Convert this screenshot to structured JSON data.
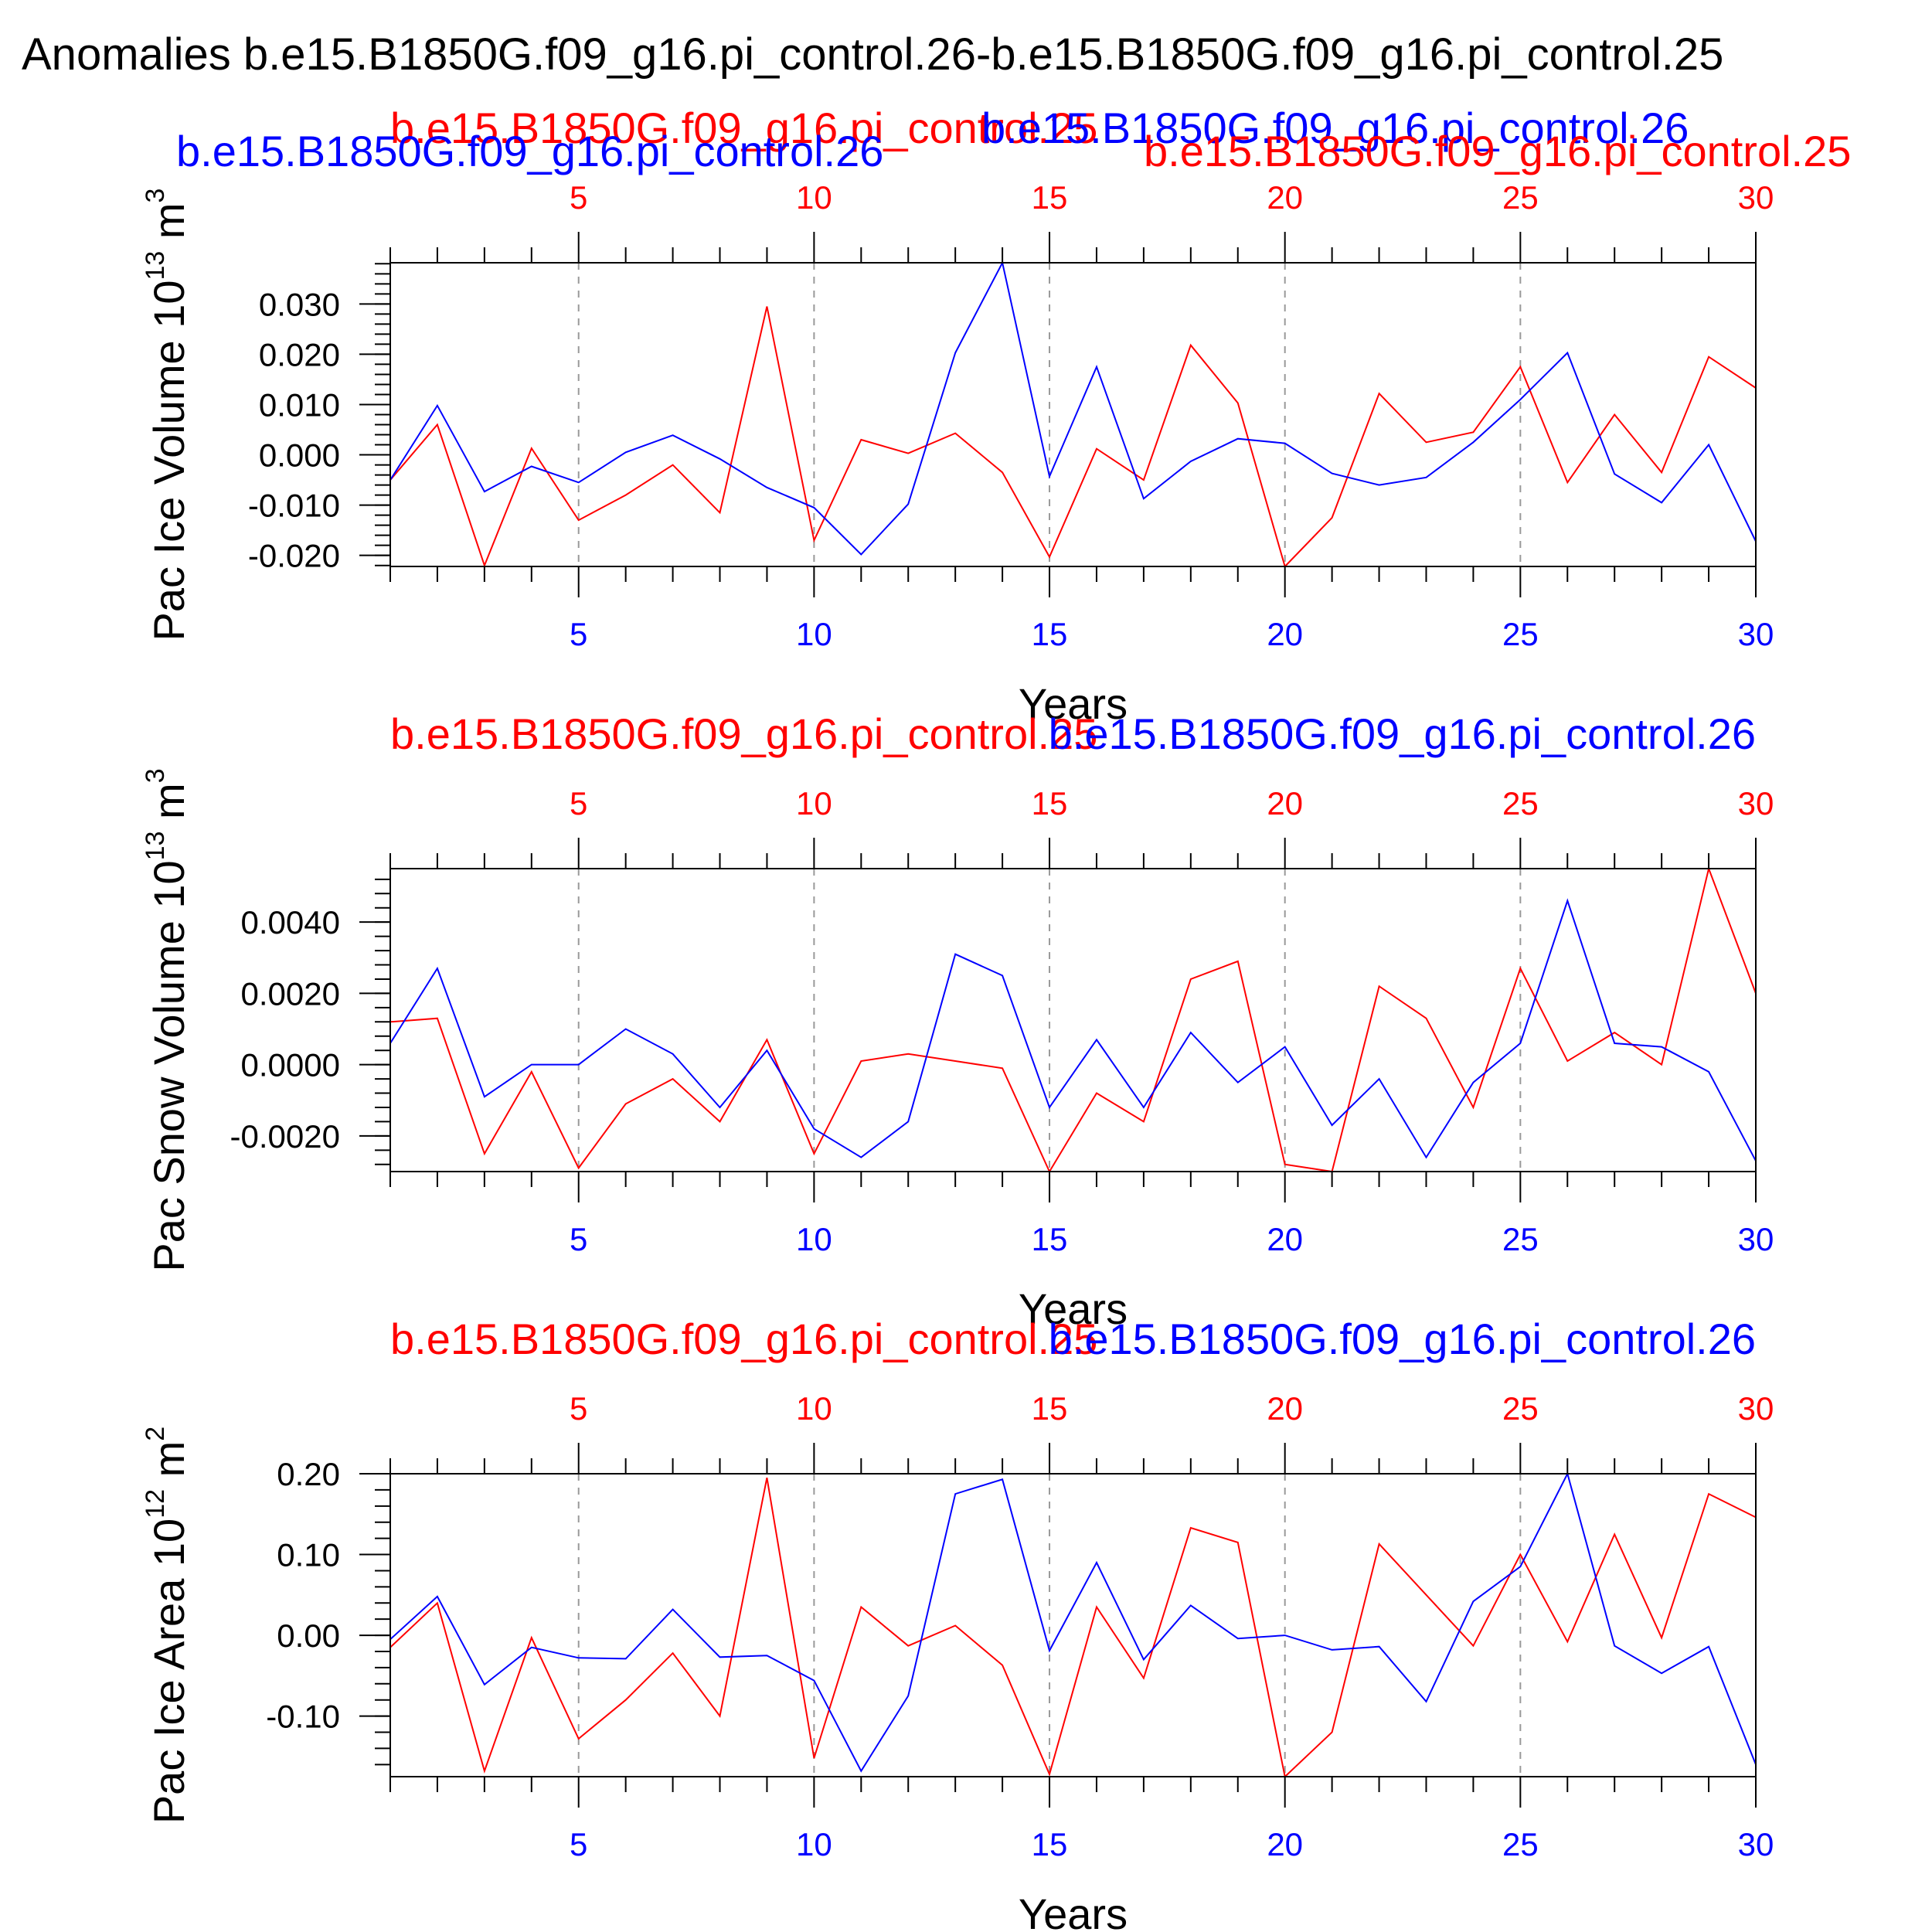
{
  "title": "Anomalies b.e15.B1850G.f09_g16.pi_control.26-b.e15.B1850G.f09_g16.pi_control.25",
  "colors": {
    "red": "#ff0000",
    "blue": "#0000ff",
    "axis": "#000000",
    "grid": "#999999"
  },
  "chart_data": [
    {
      "type": "line",
      "ylabel": "Pac Ice Volume 10",
      "ylabel_exp": "13",
      "ylabel_unit": " m",
      "ylabel_unit_exp": "3",
      "xlabel": "Years",
      "xlim": [
        1,
        30
      ],
      "ylim": [
        -0.0222,
        0.0382
      ],
      "yticks": [
        -0.02,
        -0.01,
        0.0,
        0.01,
        0.02,
        0.03
      ],
      "yticklabels": [
        "-0.020",
        "-0.010",
        "0.000",
        "0.010",
        "0.020",
        "0.030"
      ],
      "x": [
        1,
        2,
        3,
        4,
        5,
        6,
        7,
        8,
        9,
        10,
        11,
        12,
        13,
        14,
        15,
        16,
        17,
        18,
        19,
        20,
        21,
        22,
        23,
        24,
        25,
        26,
        27,
        28,
        29,
        30
      ],
      "series": [
        {
          "name": "b.e15.B1850G.f09_g16.pi_control.25",
          "color": "red",
          "axis": "top",
          "values": [
            -0.005,
            0.006,
            -0.022,
            0.0013,
            -0.013,
            -0.008,
            -0.002,
            -0.0115,
            0.0295,
            -0.017,
            0.003,
            0.0003,
            0.0043,
            -0.0035,
            -0.0203,
            0.0012,
            -0.005,
            0.0218,
            0.0103,
            -0.0222,
            -0.0125,
            0.0122,
            0.0025,
            0.0045,
            0.0175,
            -0.0055,
            0.008,
            -0.0035,
            0.0195,
            0.0133
          ]
        },
        {
          "name": "b.e15.B1850G.f09_g16.pi_control.26",
          "color": "blue",
          "axis": "bottom",
          "values": [
            -0.005,
            0.0098,
            -0.0073,
            -0.0023,
            -0.0055,
            0.0005,
            0.0039,
            -0.0008,
            -0.0065,
            -0.0105,
            -0.0198,
            -0.0098,
            0.0203,
            0.0382,
            -0.0043,
            0.0175,
            -0.0087,
            -0.0013,
            0.0032,
            0.0023,
            -0.0037,
            -0.006,
            -0.0045,
            0.0025,
            0.011,
            0.0203,
            -0.0038,
            -0.0095,
            0.002,
            -0.0172
          ]
        }
      ]
    },
    {
      "type": "line",
      "ylabel": "Pac Snow Volume 10",
      "ylabel_exp": "13",
      "ylabel_unit": " m",
      "ylabel_unit_exp": "3",
      "xlabel": "Years",
      "xlim": [
        1,
        30
      ],
      "ylim": [
        -0.003,
        0.0055
      ],
      "yticks": [
        -0.002,
        0.0,
        0.002,
        0.004
      ],
      "yticklabels": [
        "-0.0020",
        "0.0000",
        "0.0020",
        "0.0040"
      ],
      "x": [
        1,
        2,
        3,
        4,
        5,
        6,
        7,
        8,
        9,
        10,
        11,
        12,
        13,
        14,
        15,
        16,
        17,
        18,
        19,
        20,
        21,
        22,
        23,
        24,
        25,
        26,
        27,
        28,
        29,
        30
      ],
      "series": [
        {
          "name": "b.e15.B1850G.f09_g16.pi_control.25",
          "color": "red",
          "axis": "top",
          "values": [
            0.0012,
            0.0013,
            -0.0025,
            -0.0002,
            -0.0029,
            -0.0011,
            -0.0004,
            -0.0016,
            0.0007,
            -0.0025,
            0.0001,
            0.0003,
            0.0001,
            -0.0001,
            -0.003,
            -0.0008,
            -0.0016,
            0.0024,
            0.0029,
            -0.0028,
            -0.003,
            0.0022,
            0.0013,
            -0.0012,
            0.0027,
            0.0001,
            0.0009,
            0.0,
            0.0055,
            0.002
          ]
        },
        {
          "name": "b.e15.B1850G.f09_g16.pi_control.26",
          "color": "blue",
          "axis": "bottom",
          "values": [
            0.0006,
            0.0027,
            -0.0009,
            0.0,
            0.0,
            0.001,
            0.0003,
            -0.0012,
            0.0004,
            -0.0018,
            -0.0026,
            -0.0016,
            0.0031,
            0.0025,
            -0.0012,
            0.0007,
            -0.0012,
            0.0009,
            -0.0005,
            0.0005,
            -0.0017,
            -0.0004,
            -0.0026,
            -0.0005,
            0.0006,
            0.0046,
            0.0006,
            0.0005,
            -0.0002,
            -0.0027
          ]
        }
      ]
    },
    {
      "type": "line",
      "ylabel": "Pac Ice Area 10",
      "ylabel_exp": "12",
      "ylabel_unit": " m",
      "ylabel_unit_exp": "2",
      "xlabel": "Years",
      "xlim": [
        1,
        30
      ],
      "ylim": [
        -0.175,
        0.2
      ],
      "yticks": [
        -0.1,
        0.0,
        0.1,
        0.2
      ],
      "yticklabels": [
        "-0.10",
        "0.00",
        "0.10",
        "0.20"
      ],
      "x": [
        1,
        2,
        3,
        4,
        5,
        6,
        7,
        8,
        9,
        10,
        11,
        12,
        13,
        14,
        15,
        16,
        17,
        18,
        19,
        20,
        21,
        22,
        23,
        24,
        25,
        26,
        27,
        28,
        29,
        30
      ],
      "series": [
        {
          "name": "b.e15.B1850G.f09_g16.pi_control.25",
          "color": "red",
          "axis": "top",
          "values": [
            -0.015,
            0.04,
            -0.168,
            -0.003,
            -0.128,
            -0.08,
            -0.022,
            -0.1,
            0.195,
            -0.152,
            0.035,
            -0.013,
            0.012,
            -0.037,
            -0.172,
            0.035,
            -0.053,
            0.133,
            0.115,
            -0.175,
            -0.12,
            0.113,
            0.05,
            -0.013,
            0.1,
            -0.008,
            0.125,
            -0.003,
            0.175,
            0.146
          ]
        },
        {
          "name": "b.e15.B1850G.f09_g16.pi_control.26",
          "color": "blue",
          "axis": "bottom",
          "values": [
            -0.005,
            0.048,
            -0.061,
            -0.015,
            -0.028,
            -0.029,
            0.032,
            -0.027,
            -0.025,
            -0.056,
            -0.168,
            -0.075,
            0.175,
            0.193,
            -0.019,
            0.09,
            -0.03,
            0.037,
            -0.004,
            0.0,
            -0.018,
            -0.014,
            -0.082,
            0.042,
            0.085,
            0.2,
            -0.013,
            -0.047,
            -0.014,
            -0.16
          ]
        }
      ]
    }
  ]
}
